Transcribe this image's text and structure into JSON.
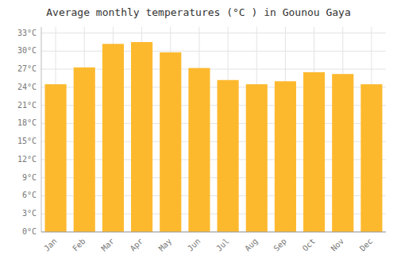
{
  "chart_data": {
    "type": "bar",
    "title": "Average monthly temperatures (°C ) in Gounou Gaya",
    "categories": [
      "Jan",
      "Feb",
      "Mar",
      "Apr",
      "May",
      "Jun",
      "Jul",
      "Aug",
      "Sep",
      "Oct",
      "Nov",
      "Dec"
    ],
    "values": [
      24.5,
      27.3,
      31.2,
      31.5,
      29.8,
      27.2,
      25.2,
      24.5,
      25.0,
      26.5,
      26.2,
      24.5
    ],
    "color": "#FDB92E",
    "ylim": [
      0,
      34
    ],
    "yticks": [
      {
        "value": 0,
        "label": "0°C"
      },
      {
        "value": 3,
        "label": "3°C"
      },
      {
        "value": 6,
        "label": "6°C"
      },
      {
        "value": 9,
        "label": "9°C"
      },
      {
        "value": 12,
        "label": "12°C"
      },
      {
        "value": 15,
        "label": "15°C"
      },
      {
        "value": 18,
        "label": "18°C"
      },
      {
        "value": 21,
        "label": "21°C"
      },
      {
        "value": 24,
        "label": "24°C"
      },
      {
        "value": 27,
        "label": "27°C"
      },
      {
        "value": 30,
        "label": "30°C"
      },
      {
        "value": 33,
        "label": "33°C"
      }
    ],
    "grid": true
  }
}
